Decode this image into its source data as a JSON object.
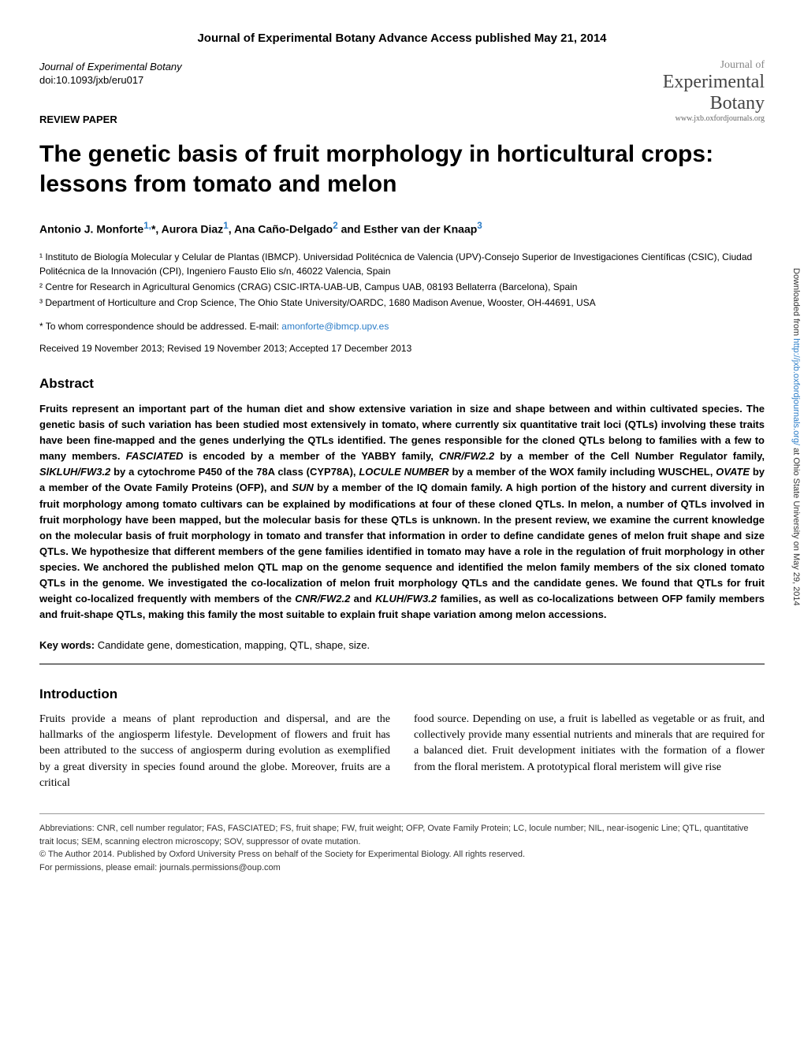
{
  "banner": "Journal of Experimental Botany Advance Access published May 21, 2014",
  "journal_meta": "Journal of Experimental Botany",
  "doi": "doi:10.1093/jxb/eru017",
  "logo": {
    "line1": "Journal of",
    "line2": "Experimental",
    "line3": "Botany",
    "url": "www.jxb.oxfordjournals.org"
  },
  "article_type": "REVIEW PAPER",
  "title": "The genetic basis of fruit morphology in horticultural crops: lessons from tomato and melon",
  "authors_html": "Antonio J. Monforte<sup>1,</sup>*, Aurora Diaz<sup>1</sup>, Ana Caño-Delgado<sup>2</sup> and Esther van der Knaap<sup>3</sup>",
  "affiliations": [
    "¹ Instituto de Biología Molecular y Celular de Plantas (IBMCP). Universidad Politécnica de Valencia (UPV)-Consejo Superior de Investigaciones Científicas (CSIC), Ciudad Politécnica de la Innovación (CPI), Ingeniero Fausto Elio s/n, 46022 Valencia, Spain",
    "² Centre for Research in Agricultural Genomics (CRAG) CSIC-IRTA-UAB-UB, Campus UAB, 08193 Bellaterra (Barcelona), Spain",
    "³ Department of Horticulture and Crop Science, The Ohio State University/OARDC, 1680 Madison Avenue, Wooster, OH-44691, USA"
  ],
  "corresp_prefix": "* To whom correspondence should be addressed. E-mail: ",
  "corresp_email": "amonforte@ibmcp.upv.es",
  "dates": "Received 19 November 2013; Revised 19 November 2013; Accepted 17 December 2013",
  "abstract_heading": "Abstract",
  "abstract_html": "Fruits represent an important part of the human diet and show extensive variation in size and shape between and within cultivated species. The genetic basis of such variation has been studied most extensively in tomato, where currently six quantitative trait loci (QTLs) involving these traits have been fine-mapped and the genes underlying the QTLs identified. The genes responsible for the cloned QTLs belong to families with a few to many members. <i>FASCIATED</i> is encoded by a member of the YABBY family, <i>CNR/FW2.2</i> by a member of the Cell Number Regulator family, <i>SlKLUH/FW3.2</i> by a cytochrome P450 of the 78A class (CYP78A), <i>LOCULE NUMBER</i> by a member of the WOX family including WUSCHEL, <i>OVATE</i> by a member of the Ovate Family Proteins (OFP), and <i>SUN</i> by a member of the IQ domain family. A high portion of the history and current diversity in fruit morphology among tomato cultivars can be explained by modifications at four of these cloned QTLs. In melon, a number of QTLs involved in fruit morphology have been mapped, but the molecular basis for these QTLs is unknown. In the present review, we examine the current knowledge on the molecular basis of fruit morphology in tomato and transfer that information in order to define candidate genes of melon fruit shape and size QTLs. We hypothesize that different members of the gene families identified in tomato may have a role in the regulation of fruit morphology in other species. We anchored the published melon QTL map on the genome sequence and identified the melon family members of the six cloned tomato QTLs in the genome. We investigated the co-localization of melon fruit morphology QTLs and the candidate genes. We found that QTLs for fruit weight co-localized frequently with members of the <i>CNR/FW2.2</i> and <i>KLUH/FW3.2</i> families, as well as co-localizations between OFP family members and fruit-shape QTLs, making this family the most suitable to explain fruit shape variation among melon accessions.",
  "keywords_label": "Key words:",
  "keywords": "Candidate gene, domestication, mapping, QTL, shape, size.",
  "intro_heading": "Introduction",
  "intro_col1": "Fruits provide a means of plant reproduction and dispersal, and are the hallmarks of the angiosperm lifestyle. Development of flowers and fruit has been attributed to the success of angiosperm during evolution as exemplified by a great diversity in species found around the globe. Moreover, fruits are a critical",
  "intro_col2": "food source. Depending on use, a fruit is labelled as vegetable or as fruit, and collectively provide many essential nutrients and minerals that are required for a balanced diet. Fruit development initiates with the formation of a flower from the floral meristem. A prototypical floral meristem will give rise",
  "abbreviations": "Abbreviations: CNR, cell number regulator; FAS, FASCIATED; FS, fruit shape; FW, fruit weight; OFP, Ovate Family Protein; LC, locule number; NIL, near-isogenic Line; QTL, quantitative trait locus; SEM, scanning electron microscopy; SOV, suppressor of ovate mutation.",
  "copyright": "© The Author 2014. Published by Oxford University Press on behalf of the Society for Experimental Biology. All rights reserved.",
  "permissions": "For permissions, please email: journals.permissions@oup.com",
  "side_prefix": "Downloaded from ",
  "side_link": "http://jxb.oxfordjournals.org/",
  "side_suffix": " at Ohio State University on May 29, 2014"
}
